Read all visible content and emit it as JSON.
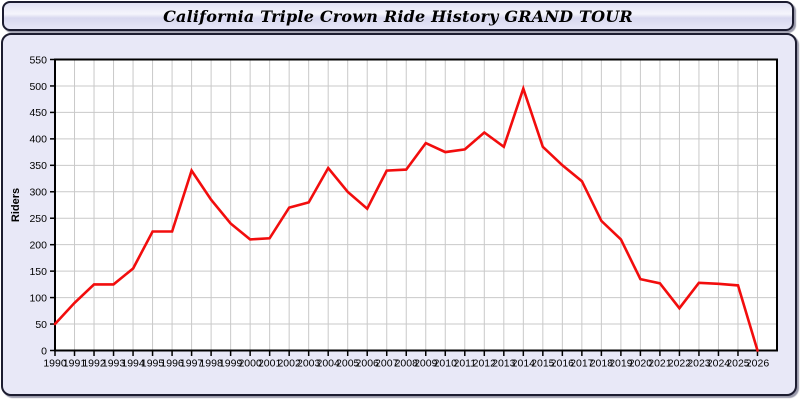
{
  "header": {
    "title": "California Triple Crown Ride History GRAND TOUR"
  },
  "chart_data": {
    "type": "line",
    "title": "California Triple Crown Ride History GRAND TOUR",
    "xlabel": "",
    "ylabel": "Riders",
    "x": [
      1990,
      1991,
      1992,
      1993,
      1994,
      1995,
      1996,
      1997,
      1998,
      1999,
      2000,
      2001,
      2002,
      2003,
      2004,
      2005,
      2006,
      2007,
      2008,
      2009,
      2010,
      2011,
      2012,
      2013,
      2014,
      2015,
      2016,
      2017,
      2018,
      2019,
      2020,
      2021,
      2022,
      2023,
      2024,
      2025,
      2026
    ],
    "values": [
      50,
      90,
      125,
      125,
      155,
      225,
      225,
      340,
      285,
      240,
      210,
      212,
      270,
      280,
      345,
      300,
      268,
      340,
      342,
      392,
      375,
      380,
      412,
      385,
      495,
      385,
      350,
      320,
      245,
      210,
      135,
      127,
      80,
      128,
      126,
      123,
      0
    ],
    "xlim": [
      1990,
      2027
    ],
    "ylim": [
      0,
      550
    ],
    "y_tick_step": 50,
    "grid": true,
    "legend": "none",
    "colors": {
      "line": "#f20d0d",
      "grid": "#c9c9c9",
      "axis": "#000000",
      "plot_bg": "#ffffff",
      "panel_bg": "#e8e8f7",
      "text": "#000000"
    }
  }
}
